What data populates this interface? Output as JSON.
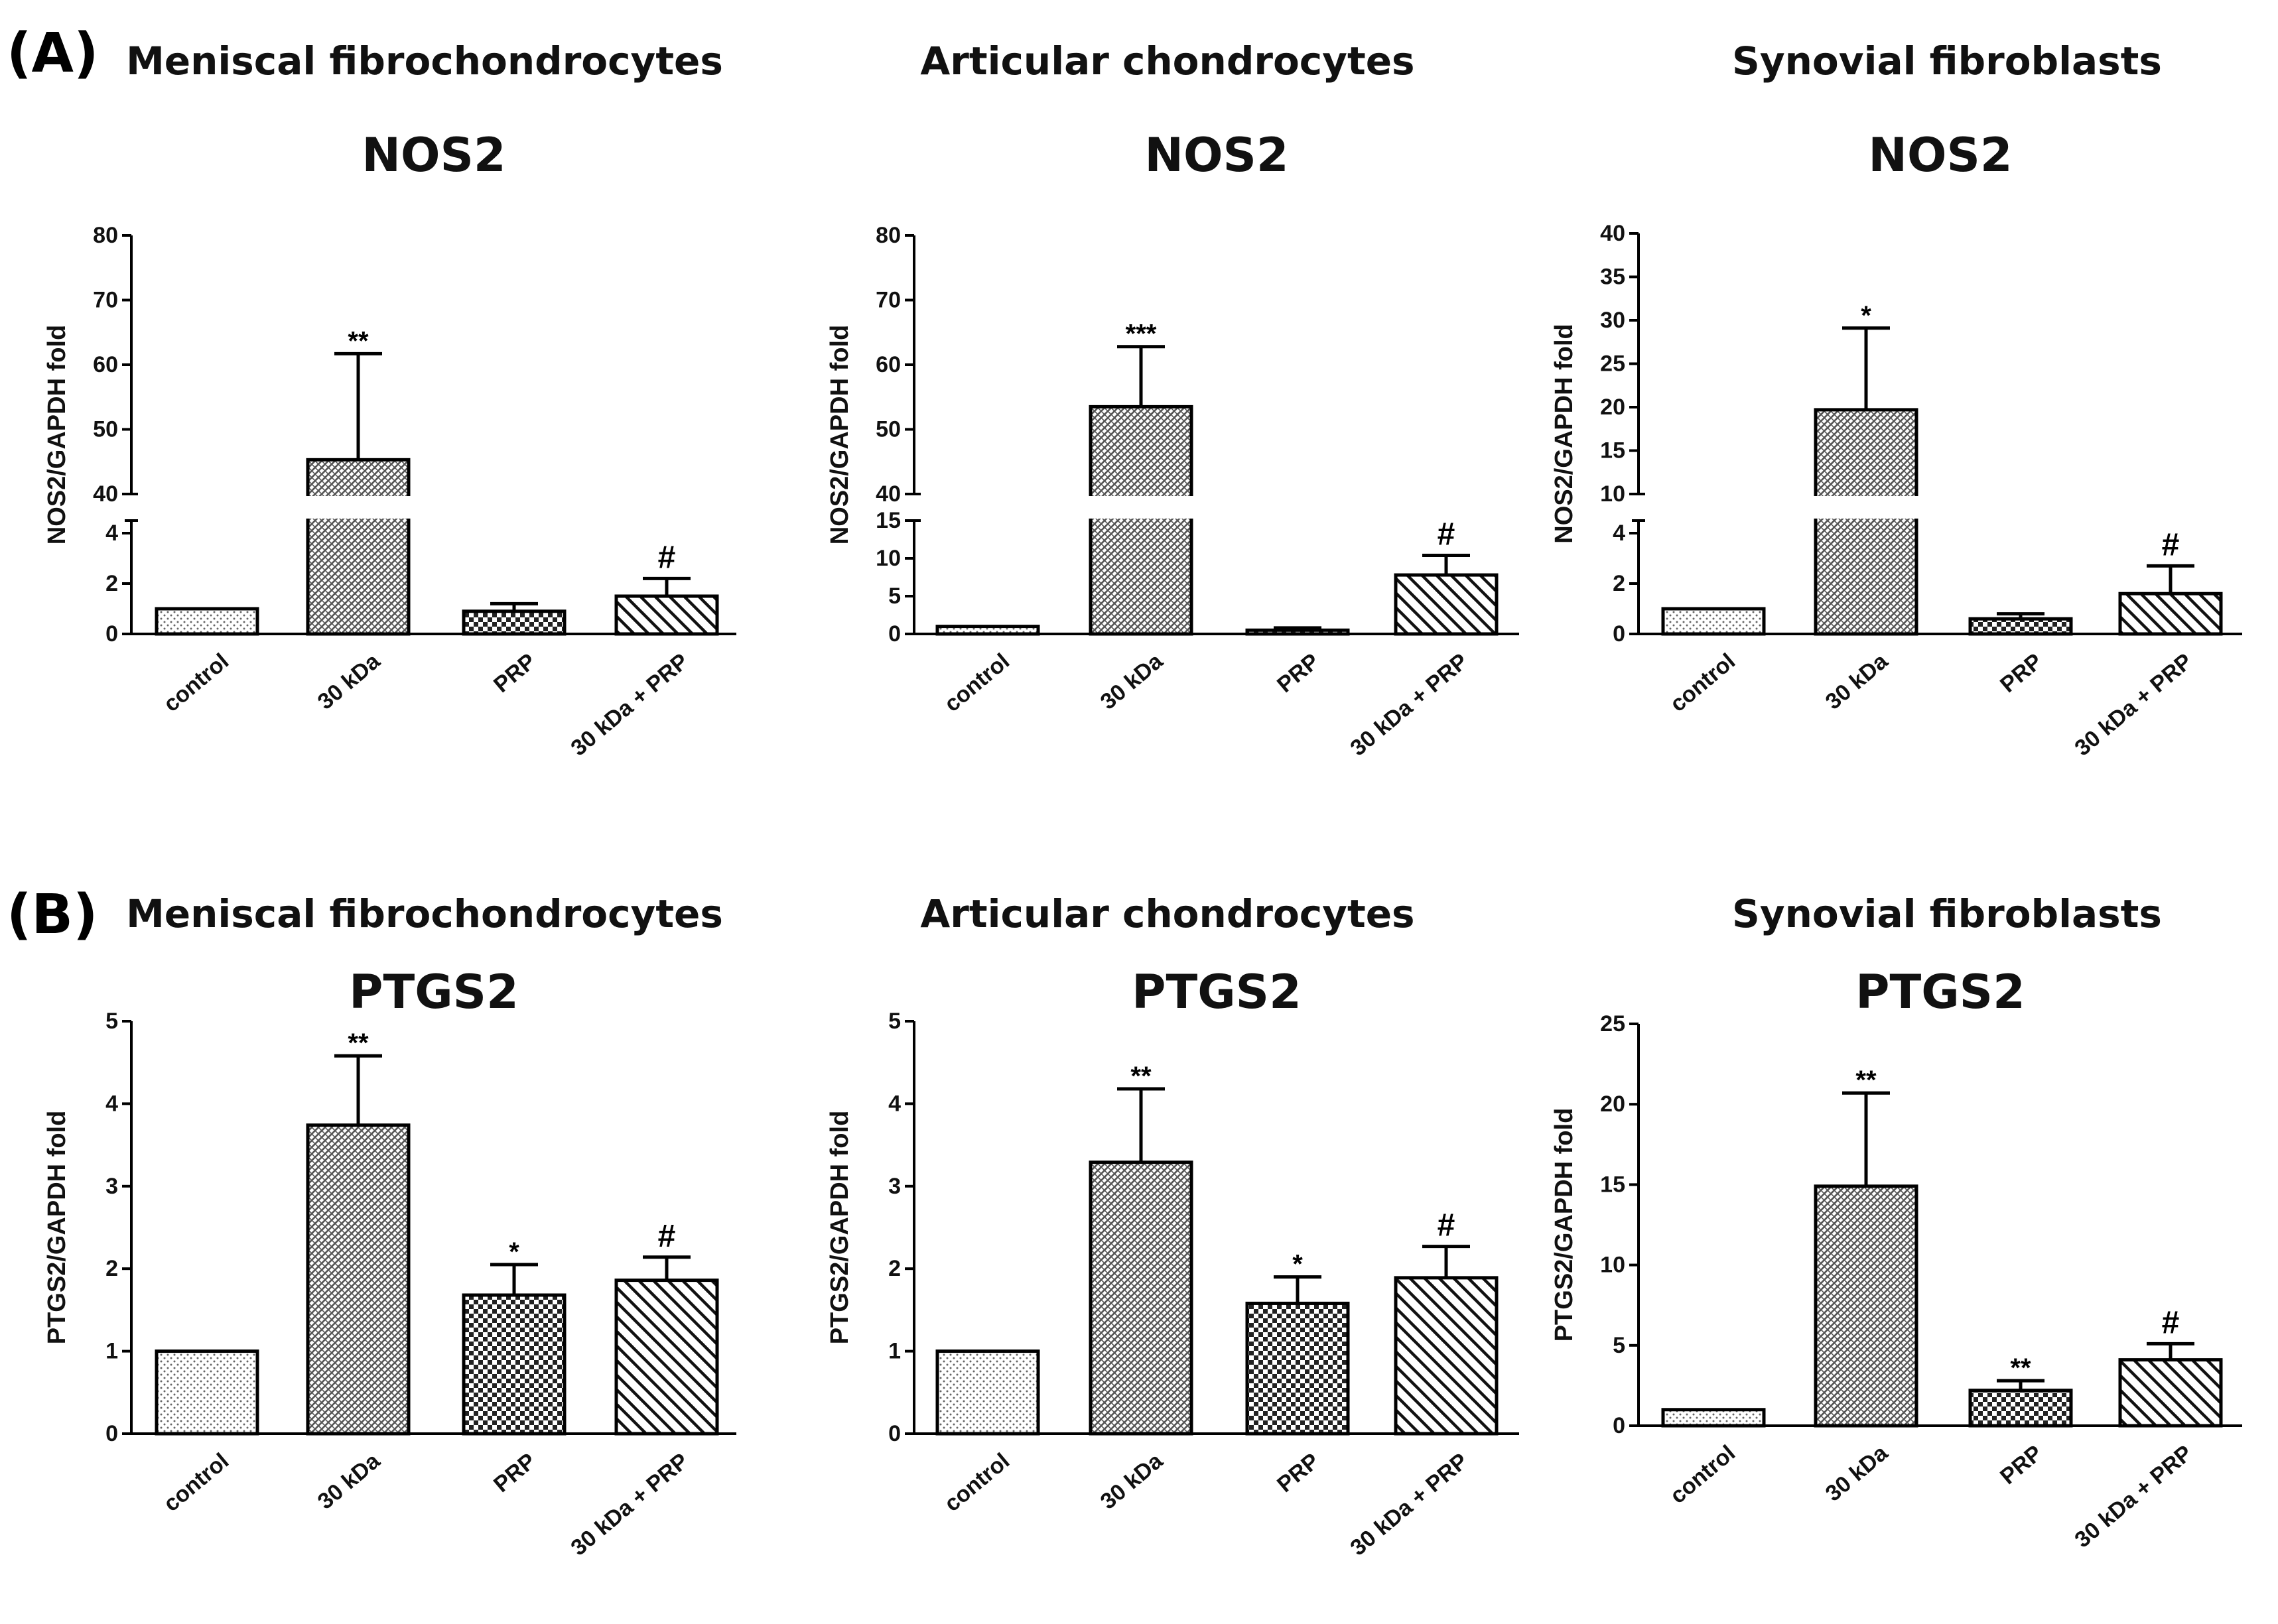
{
  "panels": [
    {
      "label": "(A)",
      "gene": "NOS2"
    },
    {
      "label": "(B)",
      "gene": "PTGS2"
    }
  ],
  "cell_types": [
    "Meniscal fibrochondrocytes",
    "Articular chondrocytes",
    "Synovial fibroblasts"
  ],
  "colors": {
    "ink": "#000000",
    "bar_fill": "#ffffff",
    "pattern_ink": "#222222"
  },
  "chart_data": [
    {
      "type": "bar",
      "panel": "A",
      "cell_type": "Meniscal fibrochondrocytes",
      "title": "NOS2",
      "ylabel": "NOS2/GAPDH fold",
      "categories": [
        "control",
        "30 kDa",
        "PRP",
        "30 kDa + PRP"
      ],
      "values": [
        1,
        45.3,
        0.9,
        1.5
      ],
      "errors": [
        0,
        16.4,
        0.3,
        0.7
      ],
      "significance": [
        "",
        "**",
        "",
        "#"
      ],
      "patterns": [
        "dots",
        "dense",
        "checker",
        "diag"
      ],
      "broken_axis": true,
      "lower": {
        "range": [
          0,
          4.5
        ],
        "ticks": [
          0,
          2,
          4
        ],
        "tick_labels": [
          "0",
          "2",
          "4"
        ]
      },
      "upper": {
        "range": [
          40,
          80
        ],
        "ticks": [
          40,
          50,
          60,
          70,
          80
        ],
        "tick_labels": [
          "40",
          "50",
          "60",
          "70",
          "80"
        ]
      }
    },
    {
      "type": "bar",
      "panel": "A",
      "cell_type": "Articular chondrocytes",
      "title": "NOS2",
      "ylabel": "NOS2/GAPDH fold",
      "categories": [
        "control",
        "30 kDa",
        "PRP",
        "30 kDa + PRP"
      ],
      "values": [
        1,
        53.5,
        0.5,
        7.8
      ],
      "errors": [
        0,
        9.3,
        0.3,
        2.6
      ],
      "significance": [
        "",
        "***",
        "",
        "#"
      ],
      "patterns": [
        "dots",
        "dense",
        "checker",
        "diag"
      ],
      "broken_axis": true,
      "lower": {
        "range": [
          0,
          15
        ],
        "ticks": [
          0,
          5,
          10,
          15
        ],
        "tick_labels": [
          "0",
          "5",
          "10",
          "15"
        ]
      },
      "upper": {
        "range": [
          40,
          80
        ],
        "ticks": [
          40,
          50,
          60,
          70,
          80
        ],
        "tick_labels": [
          "40",
          "50",
          "60",
          "70",
          "80"
        ]
      }
    },
    {
      "type": "bar",
      "panel": "A",
      "cell_type": "Synovial fibroblasts",
      "title": "NOS2",
      "ylabel": "NOS2/GAPDH fold",
      "categories": [
        "control",
        "30 kDa",
        "PRP",
        "30 kDa + PRP"
      ],
      "values": [
        1,
        19.7,
        0.6,
        1.6
      ],
      "errors": [
        0,
        9.4,
        0.2,
        1.1
      ],
      "significance": [
        "",
        "*",
        "",
        "#"
      ],
      "patterns": [
        "dots",
        "dense",
        "checker",
        "diag"
      ],
      "broken_axis": true,
      "lower": {
        "range": [
          0,
          4.5
        ],
        "ticks": [
          0,
          2,
          4
        ],
        "tick_labels": [
          "0",
          "2",
          "4"
        ]
      },
      "upper": {
        "range": [
          10,
          40
        ],
        "ticks": [
          10,
          15,
          20,
          25,
          30,
          35,
          40
        ],
        "tick_labels": [
          "10",
          "15",
          "20",
          "25",
          "30",
          "35",
          "40"
        ]
      }
    },
    {
      "type": "bar",
      "panel": "B",
      "cell_type": "Meniscal fibrochondrocytes",
      "title": "PTGS2",
      "ylabel": "PTGS2/GAPDH fold",
      "categories": [
        "control",
        "30 kDa",
        "PRP",
        "30 kDa + PRP"
      ],
      "values": [
        1,
        3.74,
        1.68,
        1.86
      ],
      "errors": [
        0,
        0.84,
        0.37,
        0.28
      ],
      "significance": [
        "",
        "**",
        "*",
        "#"
      ],
      "patterns": [
        "dots",
        "dense",
        "checker",
        "diag"
      ],
      "broken_axis": false,
      "ylim": [
        0,
        5
      ],
      "ticks": [
        0,
        1,
        2,
        3,
        4,
        5
      ],
      "tick_labels": [
        "0",
        "1",
        "2",
        "3",
        "4",
        "5"
      ]
    },
    {
      "type": "bar",
      "panel": "B",
      "cell_type": "Articular chondrocytes",
      "title": "PTGS2",
      "ylabel": "PTGS2/GAPDH fold",
      "categories": [
        "control",
        "30 kDa",
        "PRP",
        "30 kDa + PRP"
      ],
      "values": [
        1,
        3.29,
        1.58,
        1.89
      ],
      "errors": [
        0,
        0.89,
        0.32,
        0.38
      ],
      "significance": [
        "",
        "**",
        "*",
        "#"
      ],
      "patterns": [
        "dots",
        "dense",
        "checker",
        "diag"
      ],
      "broken_axis": false,
      "ylim": [
        0,
        5
      ],
      "ticks": [
        0,
        1,
        2,
        3,
        4,
        5
      ],
      "tick_labels": [
        "0",
        "1",
        "2",
        "3",
        "4",
        "5"
      ]
    },
    {
      "type": "bar",
      "panel": "B",
      "cell_type": "Synovial fibroblasts",
      "title": "PTGS2",
      "ylabel": "PTGS2/GAPDH fold",
      "categories": [
        "control",
        "30 kDa",
        "PRP",
        "30 kDa + PRP"
      ],
      "values": [
        1,
        14.9,
        2.2,
        4.1
      ],
      "errors": [
        0,
        5.8,
        0.6,
        1.0
      ],
      "significance": [
        "",
        "**",
        "**",
        "#"
      ],
      "patterns": [
        "dots",
        "dense",
        "checker",
        "diag"
      ],
      "broken_axis": false,
      "ylim": [
        0,
        25
      ],
      "ticks": [
        0,
        5,
        10,
        15,
        20,
        25
      ],
      "tick_labels": [
        "0",
        "5",
        "10",
        "15",
        "20",
        "25"
      ]
    }
  ]
}
